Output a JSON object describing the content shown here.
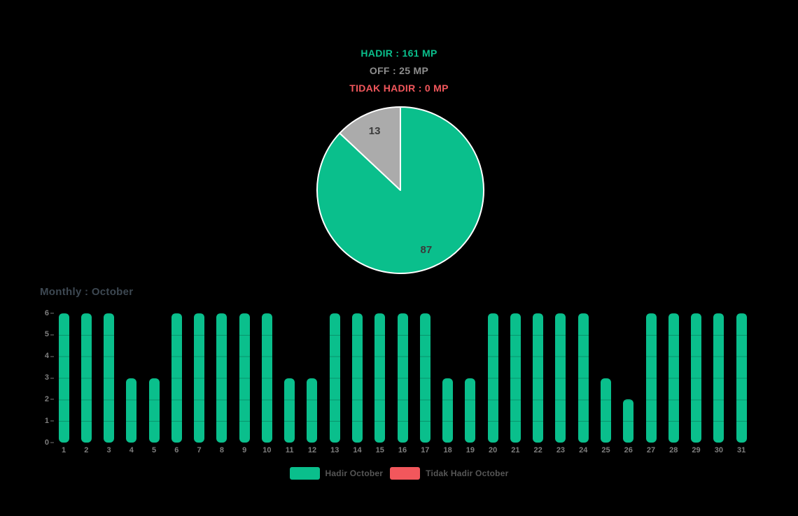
{
  "colors": {
    "green": "#0abf8c",
    "gray_slice": "#ababab",
    "red": "#f2575c"
  },
  "summary": {
    "hadir": "HADIR : 161 MP",
    "off": "OFF : 25 MP",
    "tidak_hadir": "TIDAK HADIR : 0 MP"
  },
  "legend": [
    {
      "label": "Hadir October",
      "color": "#0abf8c"
    },
    {
      "label": "Tidak Hadir October",
      "color": "#f2575c"
    }
  ],
  "chart_data": [
    {
      "type": "pie",
      "labels": [
        "Hadir",
        "Off"
      ],
      "values": [
        87,
        13
      ],
      "data_labels": [
        "87",
        "13"
      ],
      "colors": [
        "#0abf8c",
        "#ababab"
      ],
      "start_angle_deg": 0,
      "direction": "clockwise",
      "border_color": "#ffffff"
    },
    {
      "type": "bar",
      "title": "Monthly : October",
      "xlabel": "",
      "ylabel": "",
      "categories": [
        "1",
        "2",
        "3",
        "4",
        "5",
        "6",
        "7",
        "8",
        "9",
        "10",
        "11",
        "12",
        "13",
        "14",
        "15",
        "16",
        "17",
        "18",
        "19",
        "20",
        "21",
        "22",
        "23",
        "24",
        "25",
        "26",
        "27",
        "28",
        "29",
        "30",
        "31"
      ],
      "series": [
        {
          "name": "Hadir October",
          "color": "#0abf8c",
          "values": [
            6,
            6,
            6,
            3,
            3,
            6,
            6,
            6,
            6,
            6,
            3,
            3,
            6,
            6,
            6,
            6,
            6,
            3,
            3,
            6,
            6,
            6,
            6,
            6,
            3,
            2,
            6,
            6,
            6,
            6,
            6
          ]
        },
        {
          "name": "Tidak Hadir October",
          "color": "#f2575c",
          "values": [
            0,
            0,
            0,
            0,
            0,
            0,
            0,
            0,
            0,
            0,
            0,
            0,
            0,
            0,
            0,
            0,
            0,
            0,
            0,
            0,
            0,
            0,
            0,
            0,
            0,
            0,
            0,
            0,
            0,
            0,
            0
          ]
        }
      ],
      "ylim": [
        0,
        6
      ],
      "yticks": [
        "0",
        "1",
        "2",
        "3",
        "4",
        "5",
        "6"
      ],
      "grid": false,
      "legend_position": "bottom"
    }
  ]
}
